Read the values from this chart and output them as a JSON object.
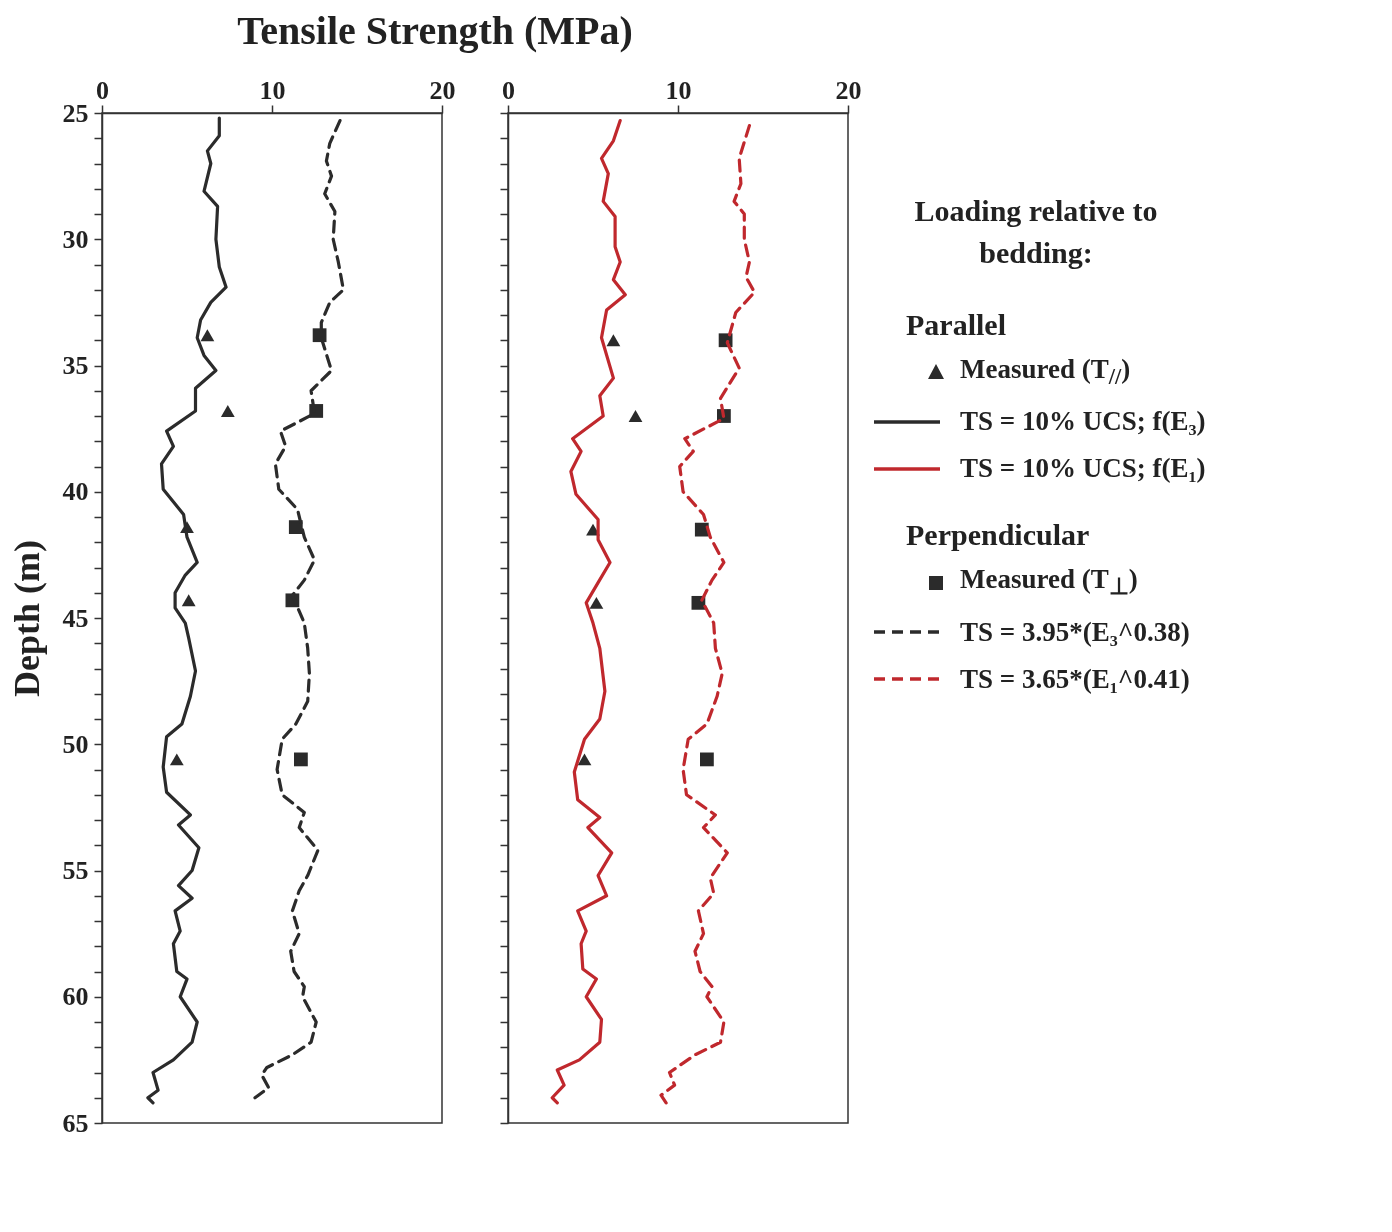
{
  "chart_data": [
    {
      "type": "line",
      "title": "Tensile Strength (MPa)",
      "ylabel": "Depth (m)",
      "legend_title": "Loading relative to bedding:",
      "annotations": [
        "Parallel",
        "Perpendicular"
      ],
      "legend": "right",
      "xlim": [
        0,
        20
      ],
      "xticks": [
        0,
        10,
        20
      ],
      "ylim": [
        65,
        25
      ],
      "yticks": [
        25,
        {
          "value": 26,
          "label": null
        },
        {
          "value": 27,
          "label": null
        },
        {
          "value": 28,
          "label": null
        },
        {
          "value": 29,
          "label": null
        },
        30,
        {
          "value": 31,
          "label": null
        },
        {
          "value": 32,
          "label": null
        },
        {
          "value": 33,
          "label": null
        },
        {
          "value": 34,
          "label": null
        },
        35,
        {
          "value": 36,
          "label": null
        },
        {
          "value": 37,
          "label": null
        },
        {
          "value": 38,
          "label": null
        },
        {
          "value": 39,
          "label": null
        },
        40,
        {
          "value": 41,
          "label": null
        },
        {
          "value": 42,
          "label": null
        },
        {
          "value": 43,
          "label": null
        },
        {
          "value": 44,
          "label": null
        },
        45,
        {
          "value": 46,
          "label": null
        },
        {
          "value": 47,
          "label": null
        },
        {
          "value": 48,
          "label": null
        },
        {
          "value": 49,
          "label": null
        },
        50,
        {
          "value": 51,
          "label": null
        },
        {
          "value": 52,
          "label": null
        },
        {
          "value": 53,
          "label": null
        },
        {
          "value": 54,
          "label": null
        },
        55,
        {
          "value": 56,
          "label": null
        },
        {
          "value": 57,
          "label": null
        },
        {
          "value": 58,
          "label": null
        },
        {
          "value": 59,
          "label": null
        },
        60,
        {
          "value": 61,
          "label": null
        },
        {
          "value": 62,
          "label": null
        },
        {
          "value": 63,
          "label": null
        },
        {
          "value": 64,
          "label": null
        },
        65
      ],
      "series": [
        {
          "name": "Measured (T$_{//}$)",
          "type": "scatter",
          "marker": "triangle",
          "color": "#2b2b2b",
          "x": [
            6.2,
            7.4,
            5.0,
            5.1,
            4.4
          ],
          "values": [
            33.8,
            36.8,
            41.4,
            44.3,
            50.6
          ]
        },
        {
          "name": "Measured (T$_{⊥}$)",
          "type": "scatter",
          "marker": "square",
          "color": "#2b2b2b",
          "x": [
            12.8,
            12.6,
            11.4,
            11.2,
            11.7
          ],
          "values": [
            33.8,
            36.8,
            41.4,
            44.3,
            50.6
          ]
        },
        {
          "name": "TS = 10% UCS; f(E₃)",
          "line_style": "solid",
          "color": "#2b2b2b",
          "x": [
            6.9,
            6.9,
            6.2,
            6.4,
            6.0,
            6.8,
            6.7,
            6.9,
            7.3,
            6.4,
            5.8,
            5.6,
            6.0,
            6.7,
            5.5,
            5.5,
            3.8,
            4.2,
            3.5,
            3.6,
            4.8,
            5.0,
            5.6,
            4.9,
            4.3,
            4.3,
            4.9,
            5.1,
            5.5,
            5.2,
            4.7,
            3.8,
            3.6,
            3.8,
            5.2,
            4.5,
            5.7,
            5.3,
            4.5,
            5.3,
            4.3,
            4.6,
            4.2,
            4.4,
            5.0,
            4.6,
            5.6,
            5.3,
            4.2,
            3.0,
            3.3,
            2.7,
            3.0
          ],
          "values": [
            25.2,
            25.9,
            26.5,
            27.0,
            28.1,
            28.7,
            30.0,
            31.1,
            31.9,
            32.5,
            33.2,
            33.9,
            34.6,
            35.2,
            35.9,
            36.8,
            37.6,
            38.2,
            38.9,
            39.9,
            40.9,
            41.8,
            42.8,
            43.3,
            44.0,
            44.6,
            45.2,
            45.8,
            47.1,
            48.1,
            49.2,
            49.7,
            50.9,
            51.9,
            52.8,
            53.2,
            54.1,
            55.0,
            55.6,
            56.1,
            56.6,
            57.4,
            57.9,
            59.0,
            59.3,
            60.0,
            61.0,
            61.8,
            62.5,
            63.0,
            63.7,
            64.0,
            64.2
          ]
        },
        {
          "name": "TS = 3.95*(E₃^0.38)",
          "line_style": "dashed",
          "color": "#2b2b2b",
          "x": [
            14.0,
            13.4,
            13.2,
            13.5,
            13.1,
            13.7,
            13.6,
            13.9,
            14.2,
            13.4,
            12.9,
            12.9,
            13.5,
            12.3,
            12.5,
            10.5,
            10.8,
            10.2,
            10.4,
            11.5,
            11.9,
            12.5,
            11.9,
            11.2,
            11.9,
            12.1,
            12.2,
            12.1,
            11.4,
            10.6,
            10.3,
            10.6,
            11.9,
            11.6,
            12.7,
            12.1,
            11.6,
            11.2,
            11.6,
            11.1,
            11.3,
            11.9,
            11.8,
            12.6,
            12.3,
            11.2,
            9.7,
            9.4,
            9.8,
            9.0
          ],
          "values": [
            25.3,
            26.2,
            26.9,
            27.5,
            28.2,
            28.9,
            30.0,
            30.9,
            32.0,
            32.5,
            33.3,
            33.9,
            35.2,
            36.0,
            36.9,
            37.6,
            38.2,
            38.9,
            39.9,
            40.7,
            41.8,
            42.7,
            43.5,
            44.1,
            45.2,
            46.2,
            47.2,
            48.3,
            49.2,
            49.8,
            51.0,
            52.0,
            52.7,
            53.3,
            54.2,
            55.2,
            55.8,
            56.6,
            57.5,
            58.2,
            59.0,
            59.6,
            60.0,
            61.0,
            61.8,
            62.3,
            62.8,
            63.1,
            63.6,
            64.0
          ]
        }
      ]
    },
    {
      "type": "line",
      "tick_labels": "x",
      "legend": "right",
      "xlim": [
        0,
        20
      ],
      "xticks": [
        0,
        10,
        20
      ],
      "ylim": [
        65,
        25
      ],
      "yticks": [
        25,
        {
          "value": 26,
          "label": null
        },
        {
          "value": 27,
          "label": null
        },
        {
          "value": 28,
          "label": null
        },
        {
          "value": 29,
          "label": null
        },
        30,
        {
          "value": 31,
          "label": null
        },
        {
          "value": 32,
          "label": null
        },
        {
          "value": 33,
          "label": null
        },
        {
          "value": 34,
          "label": null
        },
        35,
        {
          "value": 36,
          "label": null
        },
        {
          "value": 37,
          "label": null
        },
        {
          "value": 38,
          "label": null
        },
        {
          "value": 39,
          "label": null
        },
        40,
        {
          "value": 41,
          "label": null
        },
        {
          "value": 42,
          "label": null
        },
        {
          "value": 43,
          "label": null
        },
        {
          "value": 44,
          "label": null
        },
        45,
        {
          "value": 46,
          "label": null
        },
        {
          "value": 47,
          "label": null
        },
        {
          "value": 48,
          "label": null
        },
        {
          "value": 49,
          "label": null
        },
        50,
        {
          "value": 51,
          "label": null
        },
        {
          "value": 52,
          "label": null
        },
        {
          "value": 53,
          "label": null
        },
        {
          "value": 54,
          "label": null
        },
        55,
        {
          "value": 56,
          "label": null
        },
        {
          "value": 57,
          "label": null
        },
        {
          "value": 58,
          "label": null
        },
        {
          "value": 59,
          "label": null
        },
        60,
        {
          "value": 61,
          "label": null
        },
        {
          "value": 62,
          "label": null
        },
        {
          "value": 63,
          "label": null
        },
        {
          "value": 64,
          "label": null
        },
        65
      ],
      "series": [
        {
          "name": "Measured (T$_{//}$)",
          "type": "scatter",
          "marker": "triangle",
          "color": "#2b2b2b",
          "x": [
            6.2,
            7.5,
            5.0,
            5.2,
            4.5
          ],
          "values": [
            34.0,
            37.0,
            41.5,
            44.4,
            50.6
          ]
        },
        {
          "name": "Measured (T$_{⊥}$)",
          "type": "scatter",
          "marker": "square",
          "color": "#2b2b2b",
          "x": [
            12.8,
            12.7,
            11.4,
            11.2,
            11.7
          ],
          "values": [
            34.0,
            37.0,
            41.5,
            44.4,
            50.6
          ]
        },
        {
          "name": "TS = 10% UCS; f(E₁)",
          "line_style": "solid",
          "color": "#c0282d",
          "x": [
            6.6,
            6.2,
            5.5,
            5.9,
            5.6,
            6.3,
            6.3,
            6.6,
            6.2,
            6.9,
            5.8,
            5.5,
            6.2,
            5.4,
            5.6,
            3.8,
            4.3,
            3.7,
            4.0,
            5.3,
            5.3,
            6.0,
            5.3,
            4.6,
            5.0,
            5.4,
            5.7,
            5.4,
            4.5,
            3.9,
            4.1,
            5.4,
            4.7,
            6.1,
            5.3,
            5.8,
            4.1,
            4.6,
            4.3,
            4.4,
            5.2,
            4.6,
            5.5,
            5.4,
            4.2,
            2.9,
            3.3,
            2.6,
            2.9
          ],
          "values": [
            25.3,
            26.1,
            26.8,
            27.4,
            28.5,
            29.1,
            30.3,
            30.9,
            31.6,
            32.2,
            32.8,
            33.9,
            35.5,
            36.2,
            37.0,
            37.9,
            38.4,
            39.2,
            40.1,
            41.1,
            41.9,
            42.8,
            43.6,
            44.4,
            45.2,
            46.2,
            47.9,
            49.0,
            49.8,
            51.1,
            52.2,
            52.9,
            53.3,
            54.3,
            55.2,
            56.0,
            56.6,
            57.4,
            57.9,
            58.9,
            59.3,
            60.0,
            60.9,
            61.8,
            62.5,
            62.9,
            63.5,
            64.0,
            64.2
          ]
        },
        {
          "name": "TS = 3.65*(E₁^0.41)",
          "line_style": "dashed",
          "color": "#c0282d",
          "x": [
            14.2,
            13.6,
            13.7,
            13.3,
            13.9,
            13.9,
            14.2,
            14.0,
            14.5,
            13.4,
            12.9,
            13.6,
            12.5,
            12.7,
            10.4,
            10.9,
            10.1,
            10.3,
            11.5,
            11.9,
            12.7,
            12.0,
            11.4,
            12.1,
            12.2,
            12.6,
            12.3,
            11.7,
            10.6,
            10.3,
            10.5,
            12.2,
            11.5,
            12.9,
            11.9,
            12.1,
            11.2,
            11.5,
            11.0,
            11.3,
            12.0,
            11.7,
            12.7,
            12.5,
            11.0,
            9.5,
            9.8,
            9.0,
            9.3
          ],
          "values": [
            25.5,
            26.8,
            27.8,
            28.5,
            29.0,
            30.0,
            30.9,
            31.5,
            32.1,
            32.9,
            34.1,
            35.1,
            36.3,
            37.1,
            37.9,
            38.4,
            39.0,
            40.0,
            40.9,
            41.8,
            42.8,
            43.5,
            44.3,
            45.2,
            46.2,
            47.2,
            48.1,
            49.2,
            49.8,
            51.0,
            52.0,
            52.8,
            53.3,
            54.3,
            55.3,
            55.9,
            56.6,
            57.5,
            58.2,
            59.0,
            59.6,
            60.0,
            61.0,
            61.8,
            62.3,
            63.0,
            63.5,
            63.9,
            64.2
          ]
        }
      ]
    }
  ]
}
